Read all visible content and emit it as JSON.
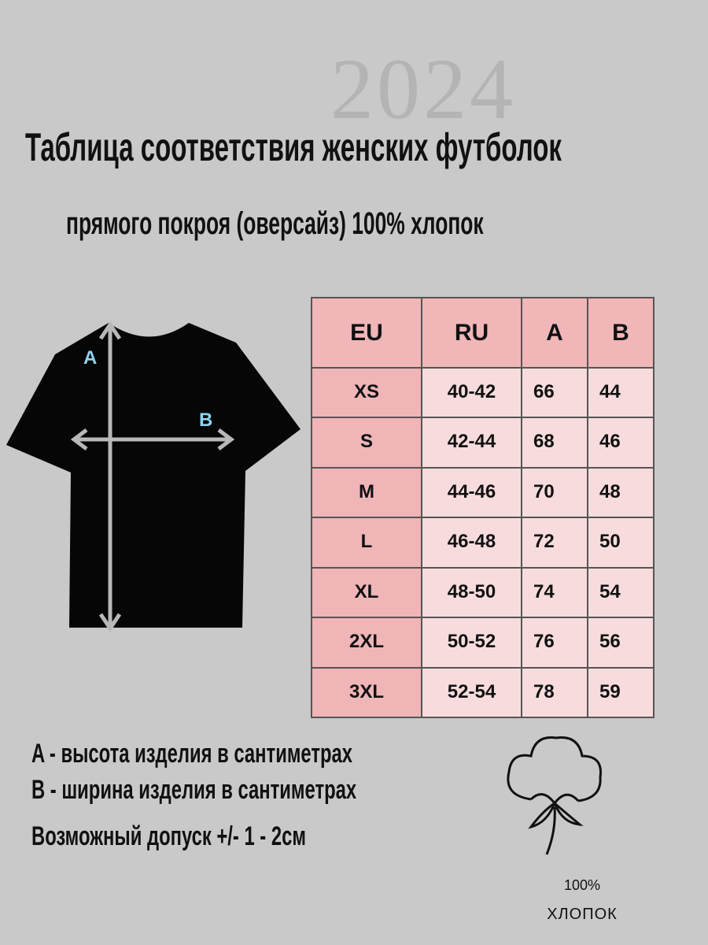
{
  "watermark_year": "2024",
  "title": "Таблица соответствия женских футболок",
  "subtitle": "прямого покроя (оверсайз) 100% хлопок",
  "diagram": {
    "label_a": "A",
    "label_b": "B",
    "label_color": "#8fd3f0"
  },
  "table": {
    "headers": [
      "EU",
      "RU",
      "A",
      "B"
    ],
    "rows": [
      [
        "XS",
        "40-42",
        "66",
        "44"
      ],
      [
        "S",
        "42-44",
        "68",
        "46"
      ],
      [
        "M",
        "44-46",
        "70",
        "48"
      ],
      [
        "L",
        "46-48",
        "72",
        "50"
      ],
      [
        "XL",
        "48-50",
        "74",
        "54"
      ],
      [
        "2XL",
        "50-52",
        "76",
        "56"
      ],
      [
        "3XL",
        "52-54",
        "78",
        "59"
      ]
    ]
  },
  "legend": {
    "a": "A - высота изделия в сантиметрах",
    "b": "B - ширина изделия в сантиметрах",
    "tolerance": "Возможный допуск +/- 1 - 2см"
  },
  "badge": {
    "icon": "cotton-flower-icon",
    "percent": "100%",
    "material": "ХЛОПОК"
  }
}
